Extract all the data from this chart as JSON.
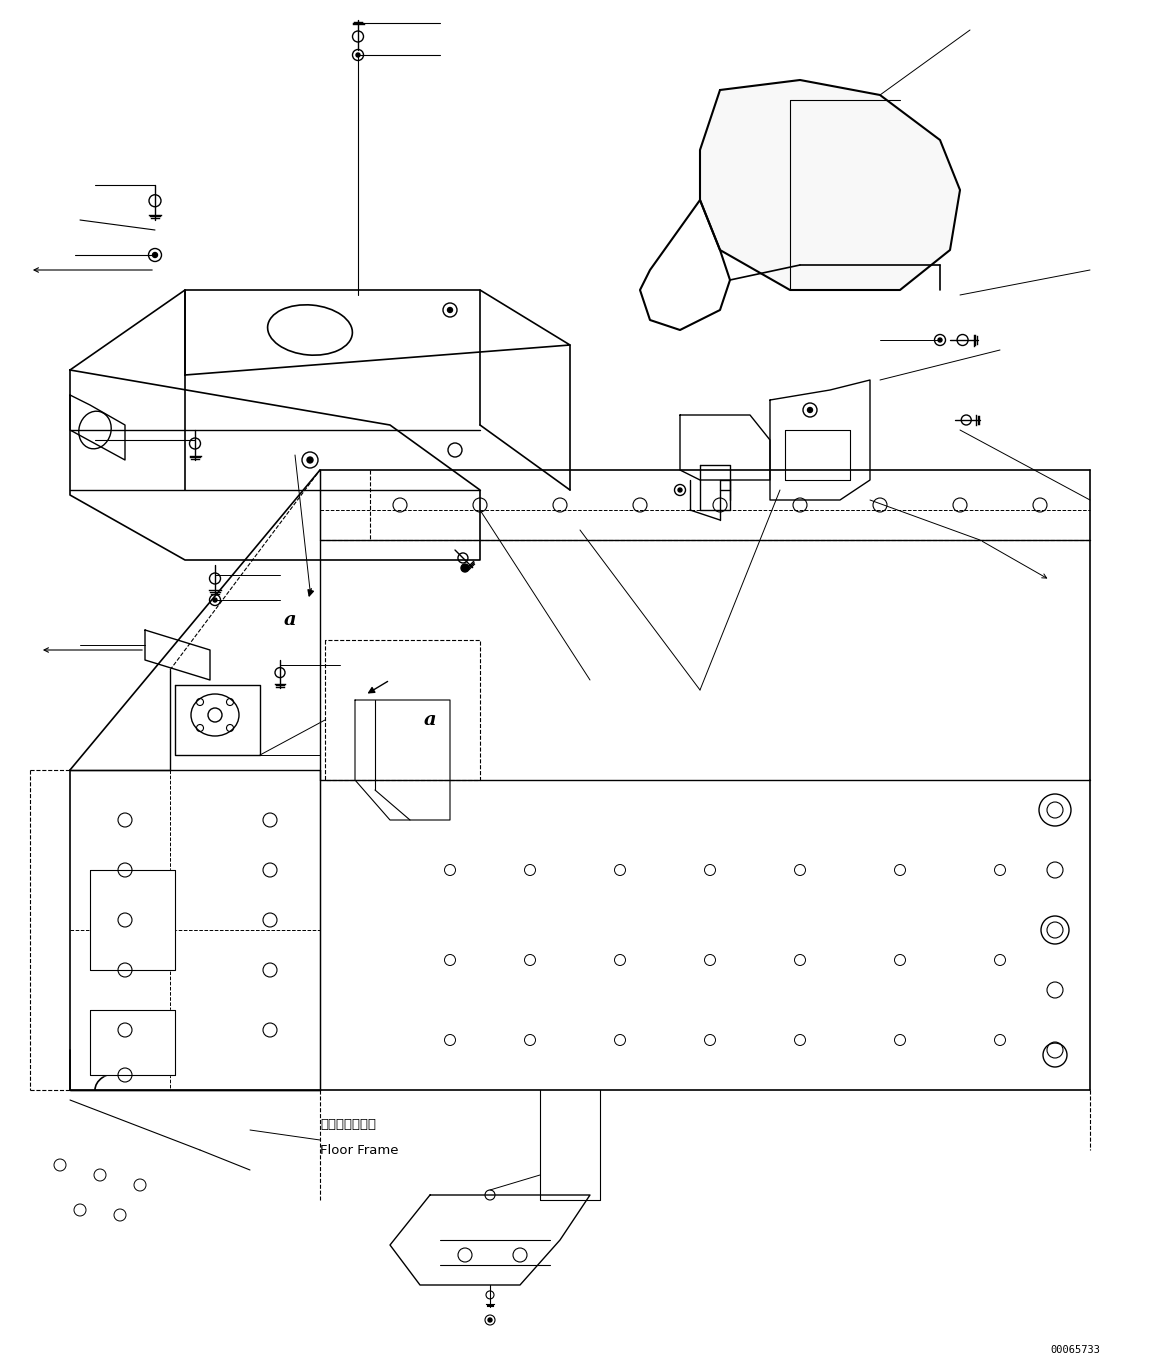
{
  "figure_width": 11.63,
  "figure_height": 13.71,
  "dpi": 100,
  "bg_color": "#ffffff",
  "line_color": "#000000",
  "part_number": "00065733",
  "floor_frame_jp": "フロアフレーム",
  "floor_frame_en": "Floor Frame"
}
